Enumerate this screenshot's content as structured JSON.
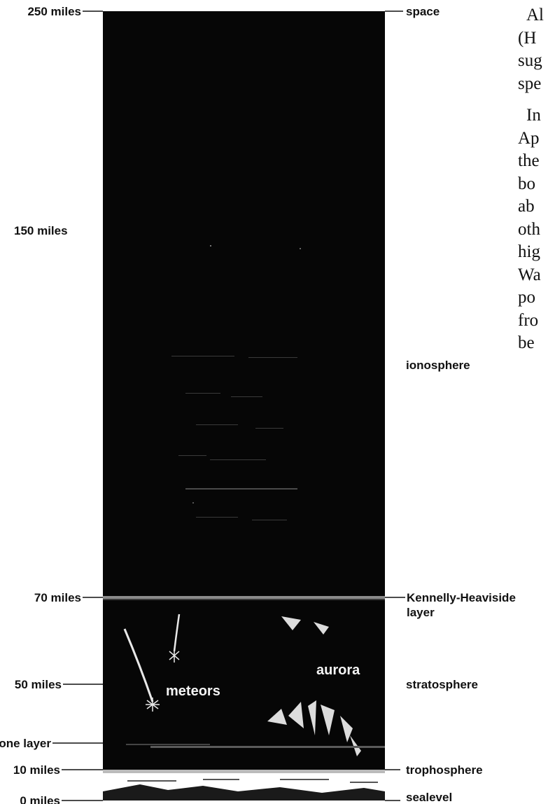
{
  "altitude_labels": {
    "alt_250": "250 miles",
    "alt_150": "150 miles",
    "alt_70": "70 miles",
    "alt_50": "50 miles",
    "ozone": "ozone layer",
    "alt_10": "10 miles",
    "alt_0": "0 miles"
  },
  "layer_labels": {
    "space": "space",
    "ionosphere": "ionosphere",
    "kh_line1": "Kennelly-Heaviside",
    "kh_line2": "layer",
    "stratosphere": "stratosphere",
    "trophosphere": "trophosphere",
    "sealevel": "sealevel"
  },
  "inside_labels": {
    "meteors": "meteors",
    "aurora": "aurora"
  },
  "side_text": {
    "p1": [
      "Al",
      "(H",
      "sug",
      "spe"
    ],
    "p2": [
      "In",
      "Ap",
      "the",
      "bo",
      "ab",
      "oth",
      "hig",
      "Wa",
      "po",
      "fro",
      "be"
    ]
  }
}
